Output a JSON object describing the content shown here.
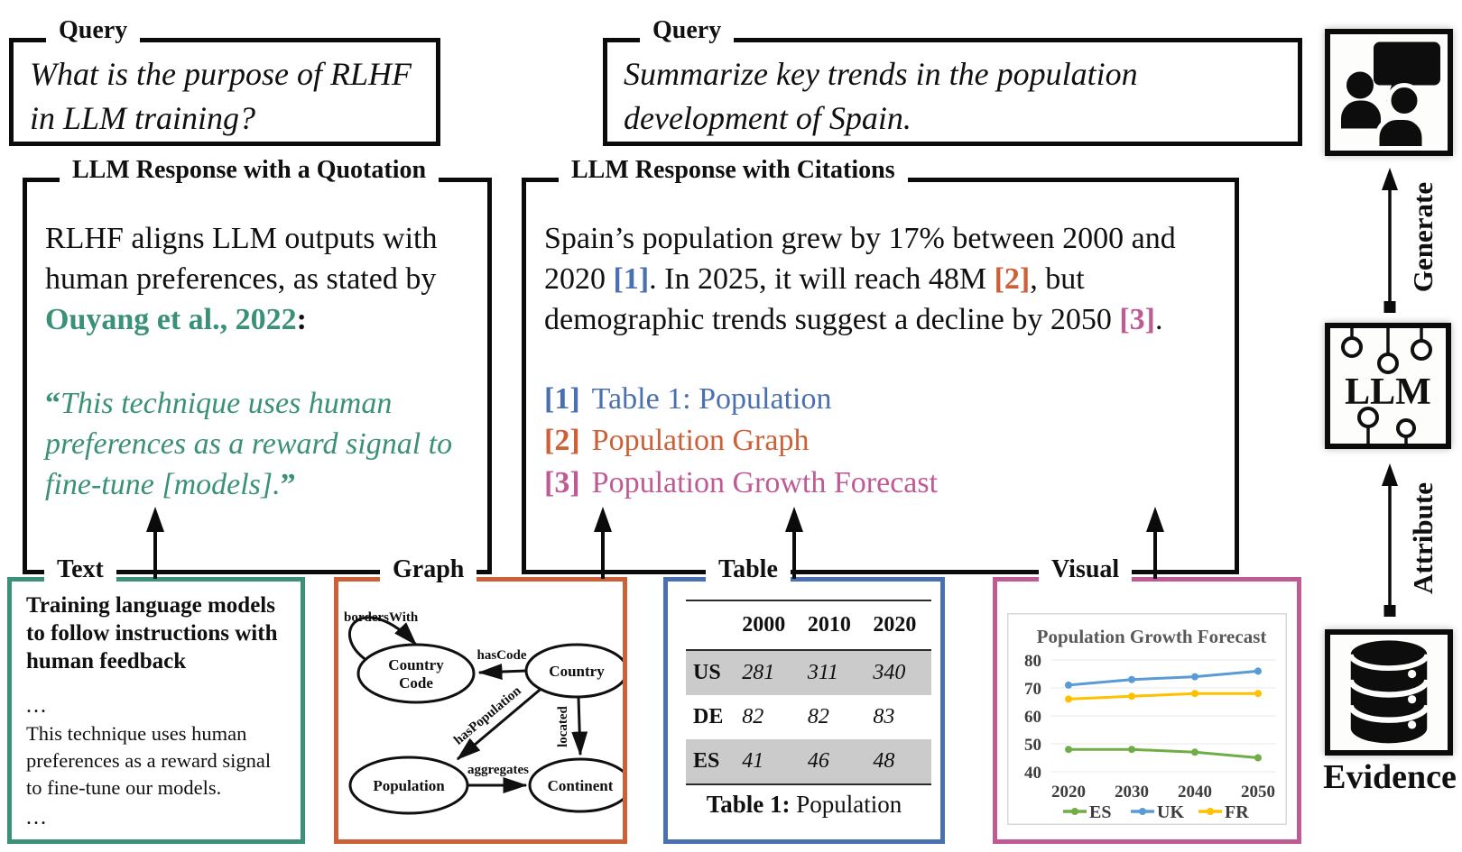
{
  "colors": {
    "green": "#3b9177",
    "orange": "#cd6036",
    "blue": "#4a70b2",
    "pink": "#bf5b94",
    "grey_row": "#cbcbcb",
    "chart_text": "#595959"
  },
  "queries": {
    "label": "Query",
    "q1": "What is the purpose of RLHF in LLM training?",
    "q2": "Summarize key trends in the population development of Spain."
  },
  "quotation_panel": {
    "title": "LLM Response with a Quotation",
    "intro": "RLHF aligns LLM outputs with human preferences, as stated by ",
    "source": "Ouyang et al., 2022",
    "colon": ":",
    "open_quote": "“",
    "quote": "This technique uses human preferences as a reward signal to fine-tune [models].",
    "close_quote": "”"
  },
  "citations_panel": {
    "title": "LLM Response with Citations",
    "sentence": {
      "part1": "Spain’s population grew by 17% between 2000 and 2020 ",
      "cite1": "[1]",
      "part2": ". In 2025, it will reach 48M ",
      "cite2": "[2]",
      "part3": ", but demographic trends suggest a decline by 2050 ",
      "cite3": "[3]",
      "part4": "."
    },
    "references": [
      {
        "marker": "[1]",
        "label": "Table 1: Population"
      },
      {
        "marker": "[2]",
        "label": "Population Graph"
      },
      {
        "marker": "[3]",
        "label": "Population Growth Forecast"
      }
    ]
  },
  "evidence_sources": {
    "text": {
      "label": "Text",
      "title": "Training language models to follow instructions with human feedback",
      "ellipsis1": "...",
      "body": "This technique uses human preferences as a reward signal to fine-tune our models.",
      "ellipsis2": "..."
    },
    "graph": {
      "label": "Graph",
      "nodes": [
        {
          "id": "country-code",
          "lines": [
            "Country",
            "Code"
          ]
        },
        {
          "id": "country",
          "lines": [
            "Country"
          ]
        },
        {
          "id": "population",
          "lines": [
            "Population"
          ]
        },
        {
          "id": "continent",
          "lines": [
            "Continent"
          ]
        }
      ],
      "edges": [
        {
          "label": "bordersWith"
        },
        {
          "label": "hasCode"
        },
        {
          "label": "hasPopulation"
        },
        {
          "label": "located"
        },
        {
          "label": "aggregates"
        }
      ]
    },
    "table": {
      "label": "Table",
      "columns": [
        "2000",
        "2010",
        "2020"
      ],
      "rows": [
        {
          "name": "US",
          "values": [
            "281",
            "311",
            "340"
          ],
          "shaded": true
        },
        {
          "name": "DE",
          "values": [
            "82",
            "82",
            "83"
          ],
          "shaded": false
        },
        {
          "name": "ES",
          "values": [
            "41",
            "46",
            "48"
          ],
          "shaded": true
        }
      ],
      "caption_bold": "Table 1:",
      "caption_rest": " Population"
    },
    "visual": {
      "label": "Visual",
      "chart_data": {
        "type": "line",
        "title": "Population Growth Forecast",
        "x": [
          "2020",
          "2030",
          "2040",
          "2050"
        ],
        "ylim": [
          40,
          80
        ],
        "yticks": [
          40,
          50,
          60,
          70,
          80
        ],
        "grid": true,
        "legend_position": "bottom",
        "series": [
          {
            "name": "ES",
            "color": "#70ad47",
            "values": [
              48,
              48,
              47,
              45
            ]
          },
          {
            "name": "UK",
            "color": "#5b9bd5",
            "values": [
              71,
              73,
              74,
              76
            ]
          },
          {
            "name": "FR",
            "color": "#ffc000",
            "values": [
              66,
              67,
              68,
              68
            ]
          }
        ]
      }
    }
  },
  "pipeline": {
    "generate_label": "Generate",
    "llm_label": "LLM",
    "attribute_label": "Attribute",
    "evidence_label": "Evidence"
  }
}
